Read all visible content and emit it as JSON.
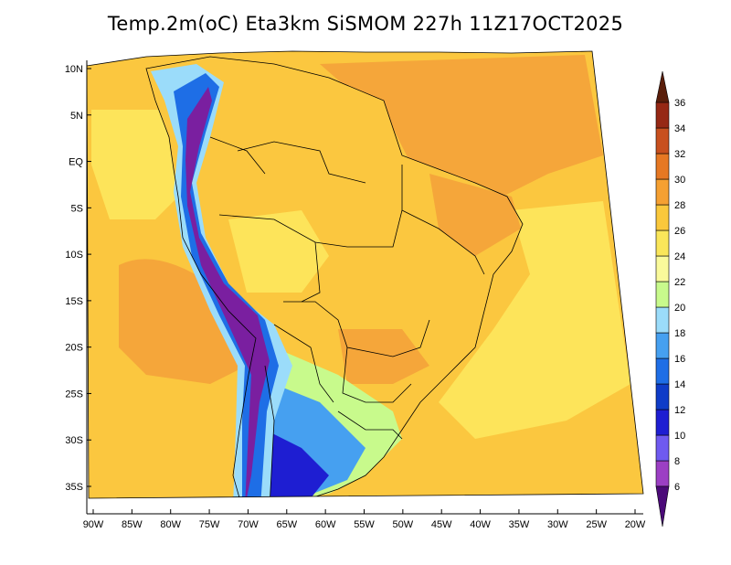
{
  "title": "Temp.2m(oC) Eta3km SiSMOM 227h 11Z17OCT2025",
  "map": {
    "lat_ticks": [
      {
        "label": "10N",
        "deg": 10
      },
      {
        "label": "5N",
        "deg": 5
      },
      {
        "label": "EQ",
        "deg": 0
      },
      {
        "label": "5S",
        "deg": -5
      },
      {
        "label": "10S",
        "deg": -10
      },
      {
        "label": "15S",
        "deg": -15
      },
      {
        "label": "20S",
        "deg": -20
      },
      {
        "label": "25S",
        "deg": -25
      },
      {
        "label": "30S",
        "deg": -30
      },
      {
        "label": "35S",
        "deg": -35
      }
    ],
    "lon_ticks": [
      {
        "label": "90W",
        "deg": -90
      },
      {
        "label": "85W",
        "deg": -85
      },
      {
        "label": "80W",
        "deg": -80
      },
      {
        "label": "75W",
        "deg": -75
      },
      {
        "label": "70W",
        "deg": -70
      },
      {
        "label": "65W",
        "deg": -65
      },
      {
        "label": "60W",
        "deg": -60
      },
      {
        "label": "55W",
        "deg": -55
      },
      {
        "label": "50W",
        "deg": -50
      },
      {
        "label": "45W",
        "deg": -45
      },
      {
        "label": "40W",
        "deg": -40
      },
      {
        "label": "35W",
        "deg": -35
      },
      {
        "label": "30W",
        "deg": -30
      },
      {
        "label": "25W",
        "deg": -25
      },
      {
        "label": "20W",
        "deg": -20
      }
    ],
    "lon_range": [
      -90,
      -20
    ],
    "lat_range": [
      -38,
      12
    ]
  },
  "colorbar": {
    "levels": [
      {
        "label": "6",
        "color": "#7a1fa0"
      },
      {
        "label": "8",
        "color": "#9c3fc4"
      },
      {
        "label": "10",
        "color": "#6f5af0"
      },
      {
        "label": "12",
        "color": "#1e1ed2"
      },
      {
        "label": "14",
        "color": "#0f3cc8"
      },
      {
        "label": "16",
        "color": "#1e6ee6"
      },
      {
        "label": "18",
        "color": "#46a0f0"
      },
      {
        "label": "20",
        "color": "#9bdcfa"
      },
      {
        "label": "22",
        "color": "#c8fa8c"
      },
      {
        "label": "24",
        "color": "#fafa9b"
      },
      {
        "label": "26",
        "color": "#fae65a"
      },
      {
        "label": "28",
        "color": "#fac83c"
      },
      {
        "label": "30",
        "color": "#f5a032"
      },
      {
        "label": "32",
        "color": "#e67823"
      },
      {
        "label": "34",
        "color": "#c8501e"
      },
      {
        "label": "36",
        "color": "#962814"
      }
    ],
    "below_color": "#4b0a78",
    "above_color": "#5a1e0a"
  },
  "field_colors": {
    "ocean_warm": "#f5a63a",
    "ocean_mid": "#fbc73f",
    "ocean_cool": "#fde45a",
    "land_base": "#fbc73f",
    "land_warm": "#f5a63a",
    "land_mild": "#fde45a",
    "andes_high": "#7a1fa0",
    "andes_mid": "#1e6ee6",
    "andes_low": "#9bdcfa",
    "south_cold": "#1e1ed2",
    "south_cool": "#46a0f0",
    "south_mild": "#c8fa8c",
    "border": "#000000"
  }
}
